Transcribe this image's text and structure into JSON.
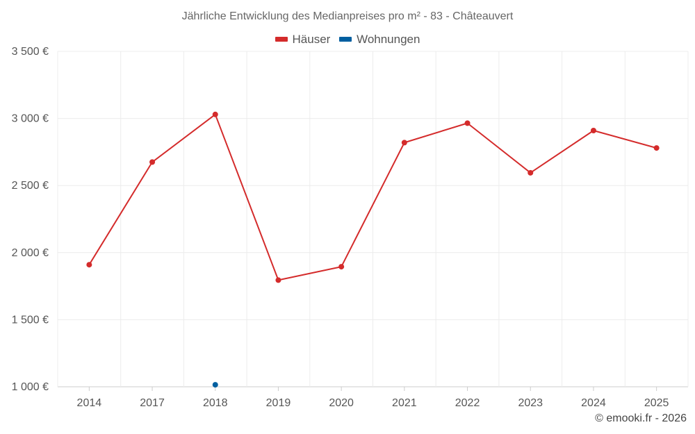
{
  "chart_data": {
    "type": "line",
    "title": "Jährliche Entwicklung des Medianpreises pro m² - 83 - Châteauvert",
    "categories": [
      "2014",
      "2017",
      "2018",
      "2019",
      "2020",
      "2021",
      "2022",
      "2023",
      "2024",
      "2025"
    ],
    "series": [
      {
        "name": "Häuser",
        "color": "#d42b2b",
        "values": [
          1910,
          2675,
          3030,
          1795,
          1895,
          2820,
          2965,
          2595,
          2910,
          2780
        ]
      },
      {
        "name": "Wohnungen",
        "color": "#005fa0",
        "values": [
          null,
          null,
          1015,
          null,
          null,
          null,
          null,
          null,
          null,
          null
        ]
      }
    ],
    "ylim": [
      1000,
      3500
    ],
    "yticks": [
      1000,
      1500,
      2000,
      2500,
      3000,
      3500
    ],
    "ytick_labels": [
      "1 000 €",
      "1 500 €",
      "2 000 €",
      "2 500 €",
      "3 000 €",
      "3 500 €"
    ],
    "grid": true,
    "legend_position": "top-center"
  },
  "footer": "© emooki.fr - 2026"
}
